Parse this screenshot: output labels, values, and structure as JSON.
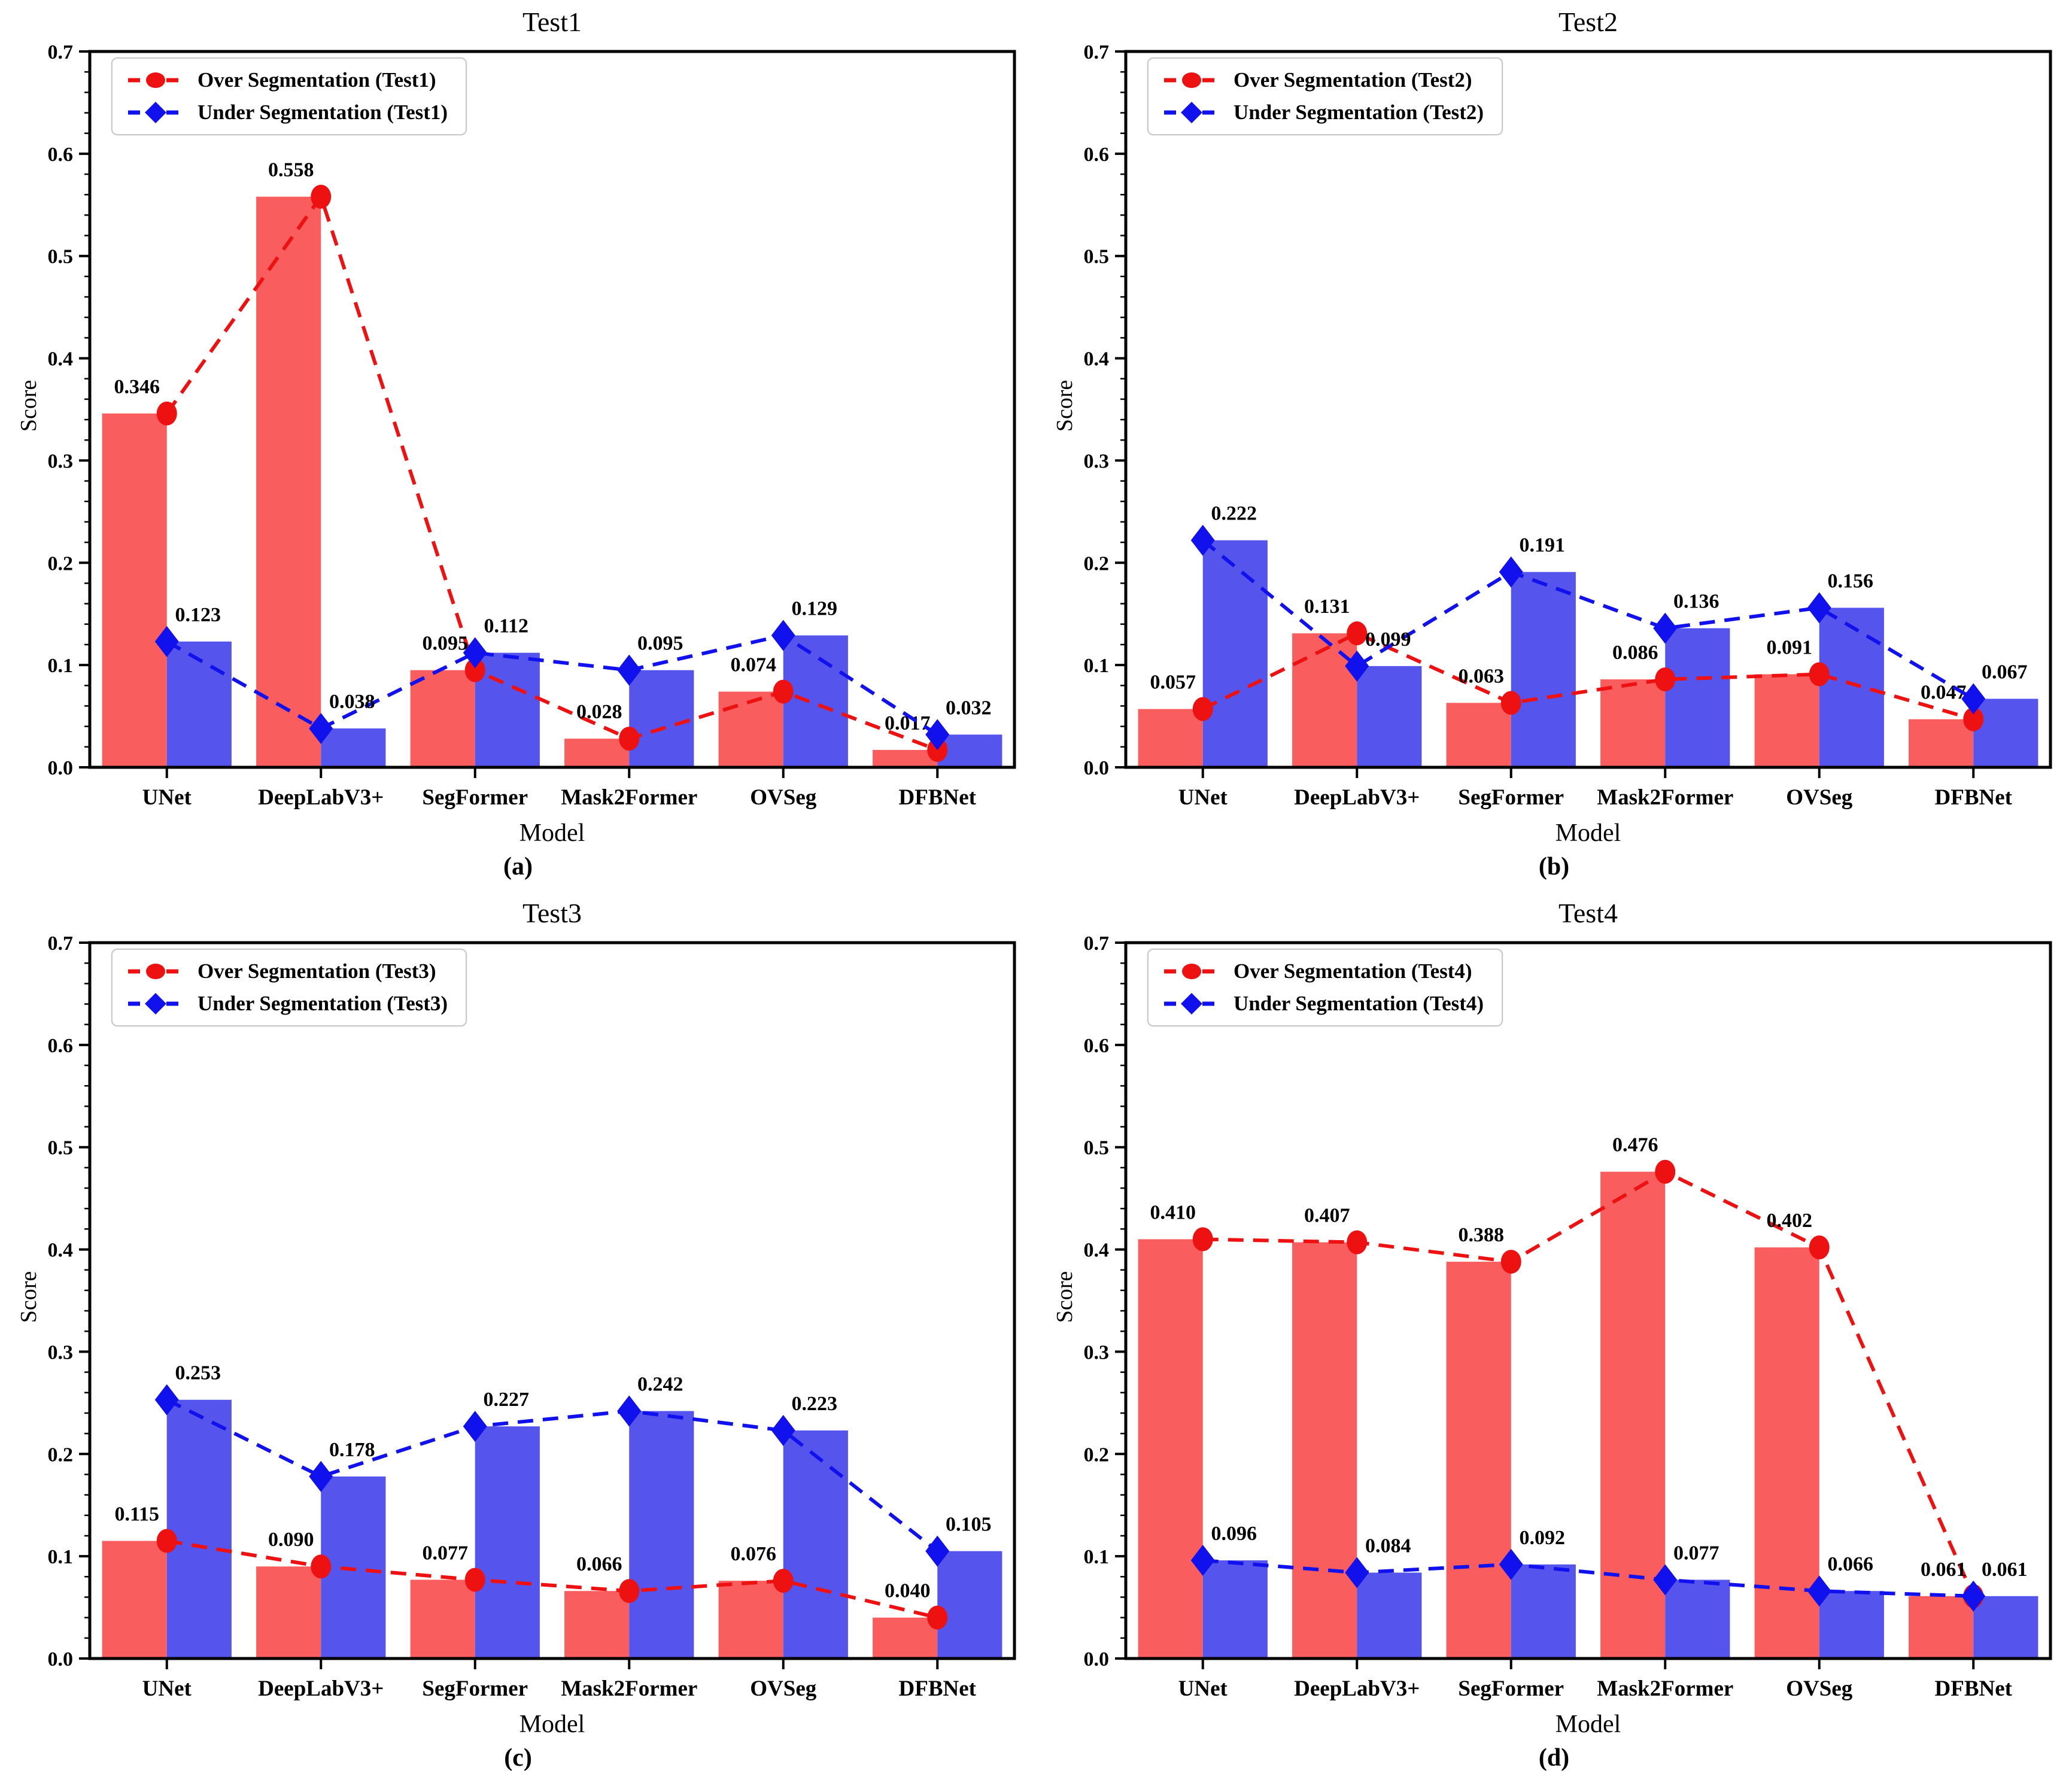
{
  "colors": {
    "over_bar": "#f95d5d",
    "over_line": "#ee1111",
    "under_bar": "#5555ee",
    "under_line": "#1111ee",
    "frame": "#000000",
    "legend_border": "#c9c9c9"
  },
  "chart_data": [
    {
      "type": "bar+line",
      "title": "Test1",
      "caption": "(a)",
      "xlabel": "Model",
      "ylabel": "Score",
      "ylim": [
        0.0,
        0.7
      ],
      "ytick_step": 0.1,
      "grid": false,
      "legend_position": "upper-left",
      "categories": [
        "UNet",
        "DeepLabV3+",
        "SegFormer",
        "Mask2Former",
        "OVSeg",
        "DFBNet"
      ],
      "series": [
        {
          "name": "Over Segmentation (Test1)",
          "role": "over",
          "marker": "circle",
          "values": [
            0.346,
            0.558,
            0.095,
            0.028,
            0.074,
            0.017
          ]
        },
        {
          "name": "Under Segmentation (Test1)",
          "role": "under",
          "marker": "diamond",
          "values": [
            0.123,
            0.038,
            0.112,
            0.095,
            0.129,
            0.032
          ]
        }
      ]
    },
    {
      "type": "bar+line",
      "title": "Test2",
      "caption": "(b)",
      "xlabel": "Model",
      "ylabel": "Score",
      "ylim": [
        0.0,
        0.7
      ],
      "ytick_step": 0.1,
      "grid": false,
      "legend_position": "upper-left",
      "categories": [
        "UNet",
        "DeepLabV3+",
        "SegFormer",
        "Mask2Former",
        "OVSeg",
        "DFBNet"
      ],
      "series": [
        {
          "name": "Over Segmentation (Test2)",
          "role": "over",
          "marker": "circle",
          "values": [
            0.057,
            0.131,
            0.063,
            0.086,
            0.091,
            0.047
          ]
        },
        {
          "name": "Under Segmentation (Test2)",
          "role": "under",
          "marker": "diamond",
          "values": [
            0.222,
            0.099,
            0.191,
            0.136,
            0.156,
            0.067
          ]
        }
      ]
    },
    {
      "type": "bar+line",
      "title": "Test3",
      "caption": "(c)",
      "xlabel": "Model",
      "ylabel": "Score",
      "ylim": [
        0.0,
        0.7
      ],
      "ytick_step": 0.1,
      "grid": false,
      "legend_position": "upper-left",
      "categories": [
        "UNet",
        "DeepLabV3+",
        "SegFormer",
        "Mask2Former",
        "OVSeg",
        "DFBNet"
      ],
      "series": [
        {
          "name": "Over Segmentation (Test3)",
          "role": "over",
          "marker": "circle",
          "values": [
            0.115,
            0.09,
            0.077,
            0.066,
            0.076,
            0.04
          ]
        },
        {
          "name": "Under Segmentation (Test3)",
          "role": "under",
          "marker": "diamond",
          "values": [
            0.253,
            0.178,
            0.227,
            0.242,
            0.223,
            0.105
          ]
        }
      ]
    },
    {
      "type": "bar+line",
      "title": "Test4",
      "caption": "(d)",
      "xlabel": "Model",
      "ylabel": "Score",
      "ylim": [
        0.0,
        0.7
      ],
      "ytick_step": 0.1,
      "grid": false,
      "legend_position": "upper-left",
      "categories": [
        "UNet",
        "DeepLabV3+",
        "SegFormer",
        "Mask2Former",
        "OVSeg",
        "DFBNet"
      ],
      "series": [
        {
          "name": "Over Segmentation (Test4)",
          "role": "over",
          "marker": "circle",
          "values": [
            0.41,
            0.407,
            0.388,
            0.476,
            0.402,
            0.061
          ]
        },
        {
          "name": "Under Segmentation (Test4)",
          "role": "under",
          "marker": "diamond",
          "values": [
            0.096,
            0.084,
            0.092,
            0.077,
            0.066,
            0.061
          ]
        }
      ]
    }
  ]
}
